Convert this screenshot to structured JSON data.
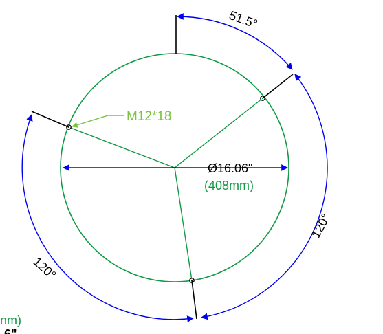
{
  "colors": {
    "circle": "#119944",
    "dimension": "#0000ee",
    "leader": "#7cc242",
    "black": "#000000"
  },
  "labels": {
    "bolt_spec": "M12*18",
    "diameter_in": "Ø16.06\"",
    "diameter_mm": "(408mm)",
    "angle_top": "51.5°",
    "angle_right": "120°",
    "angle_left": "120°",
    "clipped_mm": "nm)",
    "clipped_in": "6\""
  }
}
